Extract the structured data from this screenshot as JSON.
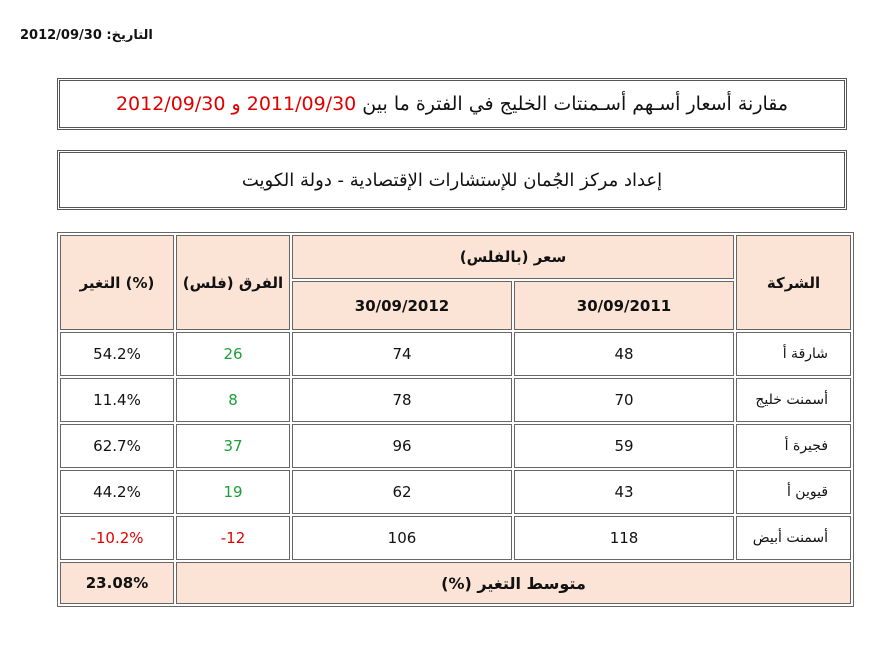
{
  "date_line": {
    "label": "التاريخ:",
    "value": "2012/09/30"
  },
  "title": {
    "prefix": "مقارنة أسعار  أسـهم أسـمنتات الخليج في الفترة ما بين",
    "date_from": "2011/09/30",
    "joiner": "و",
    "date_to": "2012/09/30"
  },
  "subtitle": "إعداد مركز الجُمان للإستشارات الإقتصادية - دولة الكويت",
  "table": {
    "headers": {
      "company": "الشركة",
      "price_group": "سعر (بالفلس)",
      "date_2011": "30/09/2011",
      "date_2012": "30/09/2012",
      "diff": "الفرق (فلس)",
      "change": "التغير (%)"
    },
    "rows": [
      {
        "company": "شارقة أ",
        "price_2011": "48",
        "price_2012": "74",
        "diff": "26",
        "change": "54.2%"
      },
      {
        "company": "أسمنت خليج",
        "price_2011": "70",
        "price_2012": "78",
        "diff": "8",
        "change": "11.4%"
      },
      {
        "company": "فجيرة أ",
        "price_2011": "59",
        "price_2012": "96",
        "diff": "37",
        "change": "62.7%"
      },
      {
        "company": "قيوين أ",
        "price_2011": "43",
        "price_2012": "62",
        "diff": "19",
        "change": "44.2%"
      },
      {
        "company": "أسمنت أبيض",
        "price_2011": "118",
        "price_2012": "106",
        "diff": "-12",
        "change": "-10.2%"
      }
    ],
    "footer": {
      "label": "متوسط التغير (%)",
      "value": "23.08%"
    }
  },
  "colors": {
    "positive": "#1aa035",
    "negative": "#e00000",
    "header_bg": "#fbe4d5",
    "title_accent": "#e00000"
  }
}
